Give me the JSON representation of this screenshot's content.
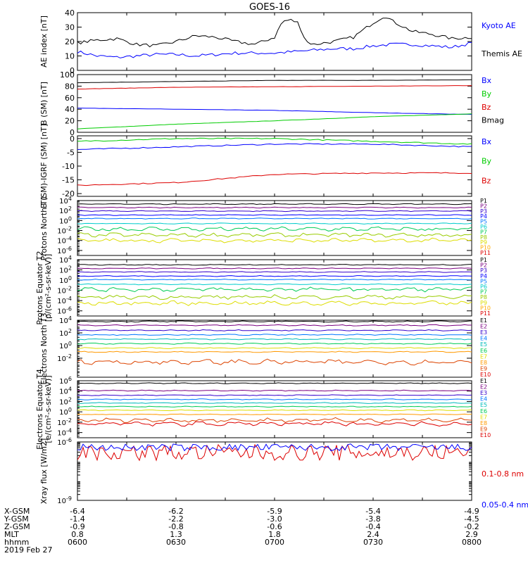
{
  "title": "GOES-16",
  "colors": {
    "black": "#000000",
    "blue": "#0000ff",
    "green": "#00cc00",
    "red": "#dd0000",
    "p_series": [
      "#000000",
      "#7a0080",
      "#3300cc",
      "#0000ff",
      "#0077ff",
      "#00cccc",
      "#00cc55",
      "#99cc00",
      "#dddd00",
      "#ffaa00",
      "#dd0000"
    ],
    "e_series": [
      "#000000",
      "#7a0080",
      "#3300cc",
      "#0077ff",
      "#00bbbb",
      "#00cc55",
      "#dddd00",
      "#ff9900",
      "#dd4400",
      "#dd0000"
    ]
  },
  "chart_data": [
    {
      "type": "line",
      "ylabel": "AE index [nT]",
      "ylim": [
        0,
        40
      ],
      "yticks": [
        "0",
        "10",
        "20",
        "30",
        "40"
      ],
      "series": [
        {
          "name": "Kyoto AE",
          "color": "#0000ff",
          "x": [
            0,
            0.05,
            0.1,
            0.15,
            0.2,
            0.25,
            0.3,
            0.35,
            0.4,
            0.45,
            0.5,
            0.55,
            0.6,
            0.65,
            0.7,
            0.75,
            0.8,
            0.85,
            0.9,
            0.95,
            1
          ],
          "y": [
            13,
            10,
            9,
            10,
            11,
            11,
            10,
            11,
            12,
            12,
            12,
            13,
            14,
            15,
            15,
            17,
            18,
            18,
            17,
            16,
            19
          ]
        },
        {
          "name": "Themis AE",
          "color": "#000000",
          "x": [
            0,
            0.05,
            0.1,
            0.15,
            0.2,
            0.25,
            0.3,
            0.35,
            0.4,
            0.45,
            0.5,
            0.52,
            0.54,
            0.56,
            0.58,
            0.6,
            0.65,
            0.7,
            0.75,
            0.78,
            0.8,
            0.85,
            0.9,
            0.95,
            1
          ],
          "y": [
            19,
            21,
            22,
            18,
            17,
            20,
            24,
            23,
            20,
            18,
            23,
            34,
            35,
            33,
            20,
            18,
            20,
            23,
            33,
            38,
            34,
            27,
            25,
            22,
            23
          ]
        }
      ]
    },
    {
      "type": "line",
      "ylabel": "B (SM) [nT]",
      "ylim": [
        0,
        100
      ],
      "yticks": [
        "0",
        "20",
        "40",
        "60",
        "80",
        "100"
      ],
      "series": [
        {
          "name": "Bx",
          "color": "#0000ff",
          "x": [
            0,
            0.25,
            0.5,
            0.75,
            1
          ],
          "y": [
            42,
            40,
            38,
            34,
            31
          ]
        },
        {
          "name": "By",
          "color": "#00cc00",
          "x": [
            0,
            0.25,
            0.5,
            0.75,
            1
          ],
          "y": [
            6,
            14,
            20,
            27,
            32
          ]
        },
        {
          "name": "Bz",
          "color": "#dd0000",
          "x": [
            0,
            0.25,
            0.5,
            0.75,
            1
          ],
          "y": [
            75,
            78,
            79,
            80,
            81
          ]
        },
        {
          "name": "Bmag",
          "color": "#000000",
          "x": [
            0,
            0.25,
            0.5,
            0.75,
            1
          ],
          "y": [
            86,
            88,
            90,
            90,
            91
          ]
        }
      ]
    },
    {
      "type": "line",
      "ylabel": "B (SM)-IGRF (SM) [nT]",
      "ylim": [
        -21,
        1
      ],
      "yticks": [
        "-20",
        "-15",
        "-10",
        "-5",
        "0"
      ],
      "series": [
        {
          "name": "Bx",
          "color": "#0000ff",
          "x": [
            0,
            0.25,
            0.5,
            0.75,
            1
          ],
          "y": [
            -4,
            -3,
            -2,
            -2,
            -3
          ]
        },
        {
          "name": "By",
          "color": "#00cc00",
          "x": [
            0,
            0.25,
            0.5,
            0.75,
            1
          ],
          "y": [
            -1,
            0,
            0,
            -1,
            -2
          ]
        },
        {
          "name": "Bz",
          "color": "#dd0000",
          "x": [
            0,
            0.25,
            0.5,
            0.75,
            1
          ],
          "y": [
            -17,
            -16,
            -13,
            -12.5,
            -12.5
          ]
        }
      ]
    },
    {
      "type": "line",
      "ylabel": "Protons North T1",
      "ylabel2": "",
      "yscale": "log",
      "ylim": [
        -7,
        4
      ],
      "ytick_exps": [
        -6,
        -4,
        -2,
        0,
        2,
        4
      ],
      "labels": [
        "P1",
        "P2",
        "P3",
        "P4",
        "P5",
        "P6",
        "P7",
        "P8",
        "P9",
        "P10",
        "P11"
      ],
      "levels": [
        3.3,
        2.6,
        1.9,
        1.1,
        0.4,
        -0.6,
        -1.7,
        -2.9,
        -4.0
      ]
    },
    {
      "type": "line",
      "ylabel": "Protons Equator T2",
      "ylabel2": "[p/(cm²-s-sr-keV)]",
      "yscale": "log",
      "ylim": [
        -7,
        4
      ],
      "ytick_exps": [
        -6,
        -4,
        -2,
        0,
        2,
        4
      ],
      "labels": [
        "P1",
        "P2",
        "P3",
        "P4",
        "P5",
        "P6",
        "P7",
        "P8",
        "P9",
        "P10",
        "P11"
      ],
      "levels": [
        3.0,
        2.3,
        1.6,
        0.8,
        0.1,
        -0.8,
        -1.8,
        -3.3,
        -4.5
      ]
    },
    {
      "type": "line",
      "ylabel": "Electrons North T3",
      "ylabel2": "",
      "yscale": "log",
      "ylim": [
        -5,
        4
      ],
      "ytick_exps": [
        -2,
        0,
        2,
        4
      ],
      "labels": [
        "E1",
        "E2",
        "E3",
        "E4",
        "E5",
        "E6",
        "E7",
        "E8",
        "E9",
        "E10"
      ],
      "levels": [
        3.8,
        3.2,
        2.4,
        1.7,
        1.0,
        0.3,
        -0.4,
        -1.0,
        -2.6
      ]
    },
    {
      "type": "line",
      "ylabel": "Electrons Equator T4",
      "ylabel2": "[e/(cm²-s-sr-keV)]",
      "yscale": "log",
      "ylim": [
        -5,
        6
      ],
      "ytick_exps": [
        -4,
        -2,
        0,
        2,
        4,
        6
      ],
      "labels": [
        "E1",
        "E2",
        "E3",
        "E4",
        "E5",
        "E6",
        "E7",
        "E8",
        "E9",
        "E10"
      ],
      "levels": [
        5.5,
        4.1,
        3.2,
        2.4,
        1.7,
        1.0,
        0.3,
        -0.5,
        -1.6,
        -2.3
      ]
    },
    {
      "type": "line",
      "ylabel": "Xray flux [W/m2]",
      "yscale": "log",
      "ylim": [
        -9,
        -6
      ],
      "ytick_exps": [
        -9,
        -6
      ],
      "series": [
        {
          "name": "0.1-0.8 nm",
          "color": "#dd0000",
          "mean": -6.55
        },
        {
          "name": "0.05-0.4 nm",
          "color": "#0000ff",
          "mean": -6.28
        }
      ]
    }
  ],
  "axis_rows": [
    {
      "label": "X-GSM",
      "values": [
        "-6.4",
        "-6.2",
        "-5.9",
        "-5.4",
        "-4.9"
      ]
    },
    {
      "label": "Y-GSM",
      "values": [
        "-1.4",
        "-2.2",
        "-3.0",
        "-3.8",
        "-4.5"
      ]
    },
    {
      "label": "Z-GSM",
      "values": [
        "-0.9",
        "-0.8",
        "-0.6",
        "-0.4",
        "-0.2"
      ]
    },
    {
      "label": "MLT",
      "values": [
        "0.8",
        "1.3",
        "1.8",
        "2.4",
        "2.9"
      ]
    },
    {
      "label": "hhmm",
      "values": [
        "0600",
        "0630",
        "0700",
        "0730",
        "0800"
      ]
    }
  ],
  "date": "2019 Feb 27"
}
